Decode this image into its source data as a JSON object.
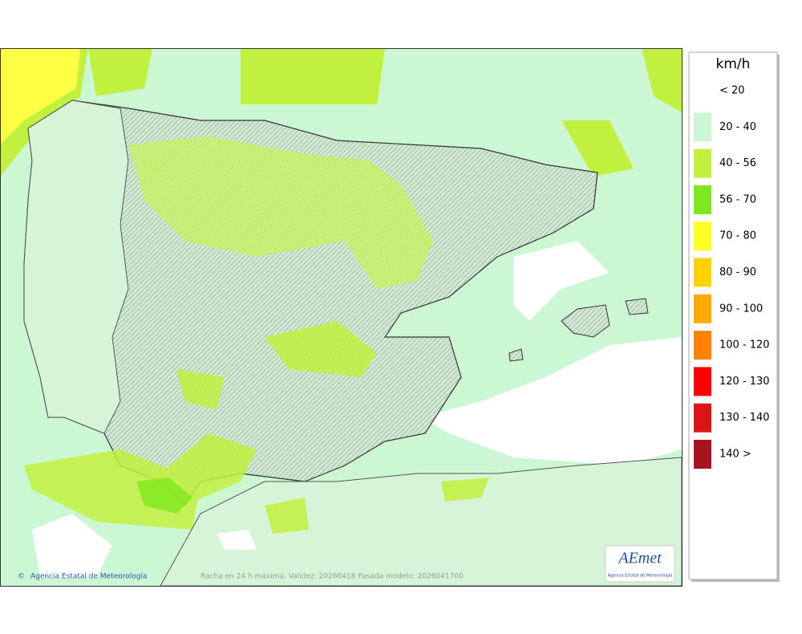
{
  "map": {
    "copyright": "Agencia Estatal de Meteorología",
    "caption": "Racha en 24 h máxima. Validez: 20260418 Pasada modelo: 2026041700",
    "logo": {
      "name": "AEmet",
      "subtitle": "Agencia Estatal de Meteorología"
    }
  },
  "legend": {
    "title": "km/h",
    "items": [
      {
        "label": "< 20",
        "color": "#ffffff"
      },
      {
        "label": "20 - 40",
        "color": "#ccf7d3"
      },
      {
        "label": "40 - 56",
        "color": "#c2f03e"
      },
      {
        "label": "56 - 70",
        "color": "#7ee81c"
      },
      {
        "label": "70 - 80",
        "color": "#ffff22"
      },
      {
        "label": "80 - 90",
        "color": "#ffd200"
      },
      {
        "label": "90 - 100",
        "color": "#ffaa00"
      },
      {
        "label": "100 - 120",
        "color": "#ff8200"
      },
      {
        "label": "120 - 130",
        "color": "#ff0000"
      },
      {
        "label": "130 - 140",
        "color": "#dc1414"
      },
      {
        "label": "140 >",
        "color": "#a8141e"
      }
    ]
  }
}
